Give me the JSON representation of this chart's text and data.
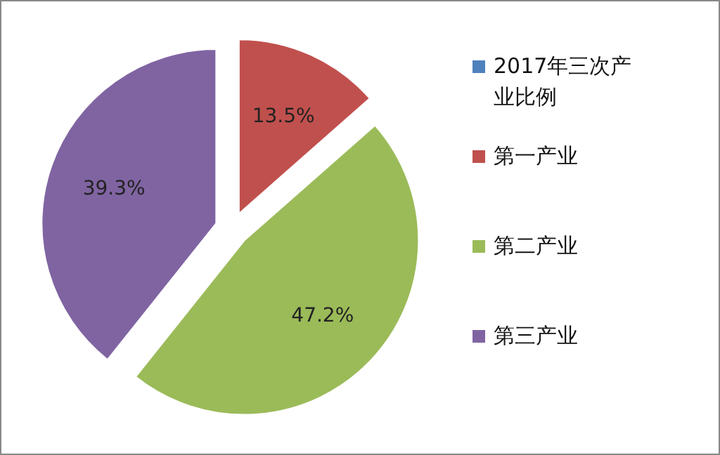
{
  "chart_data": {
    "type": "pie",
    "legend_title": "2017年三次产业比例",
    "categories": [
      "第一产业",
      "第二产业",
      "第三产业"
    ],
    "values": [
      13.5,
      47.2,
      39.3
    ],
    "colors": [
      "#c0504d",
      "#9bbb59",
      "#8064a2"
    ],
    "value_labels": [
      "13.5%",
      "47.2%",
      "39.3%"
    ],
    "legend": "right"
  }
}
